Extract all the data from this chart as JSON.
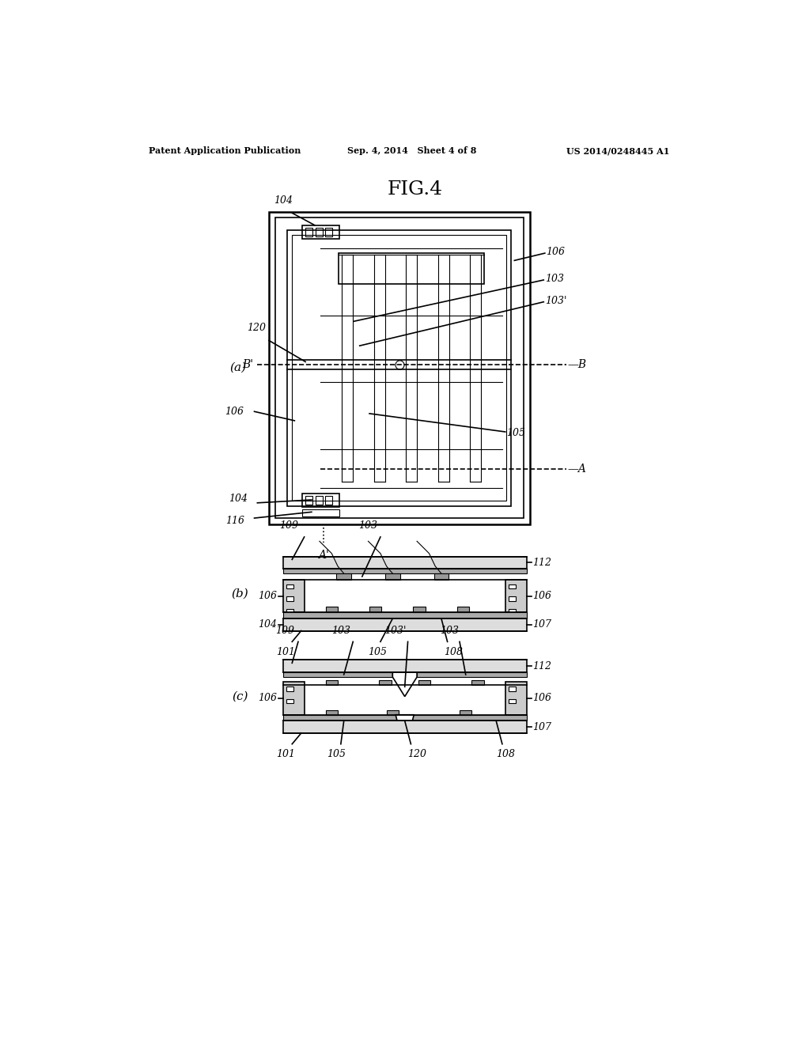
{
  "bg_color": "#ffffff",
  "line_color": "#000000",
  "title": "FIG.4",
  "header_left": "Patent Application Publication",
  "header_center": "Sep. 4, 2014   Sheet 4 of 8",
  "header_right": "US 2014/0248445 A1"
}
